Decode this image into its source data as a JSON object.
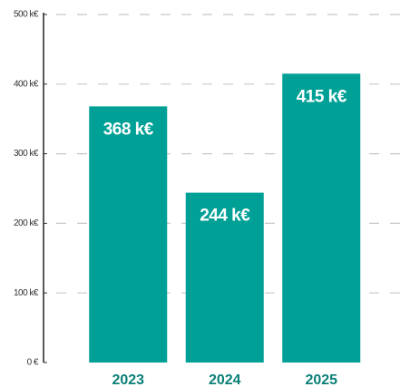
{
  "chart_data": {
    "type": "bar",
    "categories": [
      "2023",
      "2024",
      "2025"
    ],
    "values": [
      368,
      244,
      415
    ],
    "value_labels": [
      "368 k€",
      "244 k€",
      "415 k€"
    ],
    "color": "#00a096",
    "ylim": [
      0,
      500
    ],
    "yticks": [
      {
        "value": 0,
        "label": "0 €"
      },
      {
        "value": 100,
        "label": "100 k€"
      },
      {
        "value": 200,
        "label": "200 k€"
      },
      {
        "value": 300,
        "label": "300 k€"
      },
      {
        "value": 400,
        "label": "400 k€"
      },
      {
        "value": 500,
        "label": "500 k€"
      }
    ],
    "grid": true
  }
}
